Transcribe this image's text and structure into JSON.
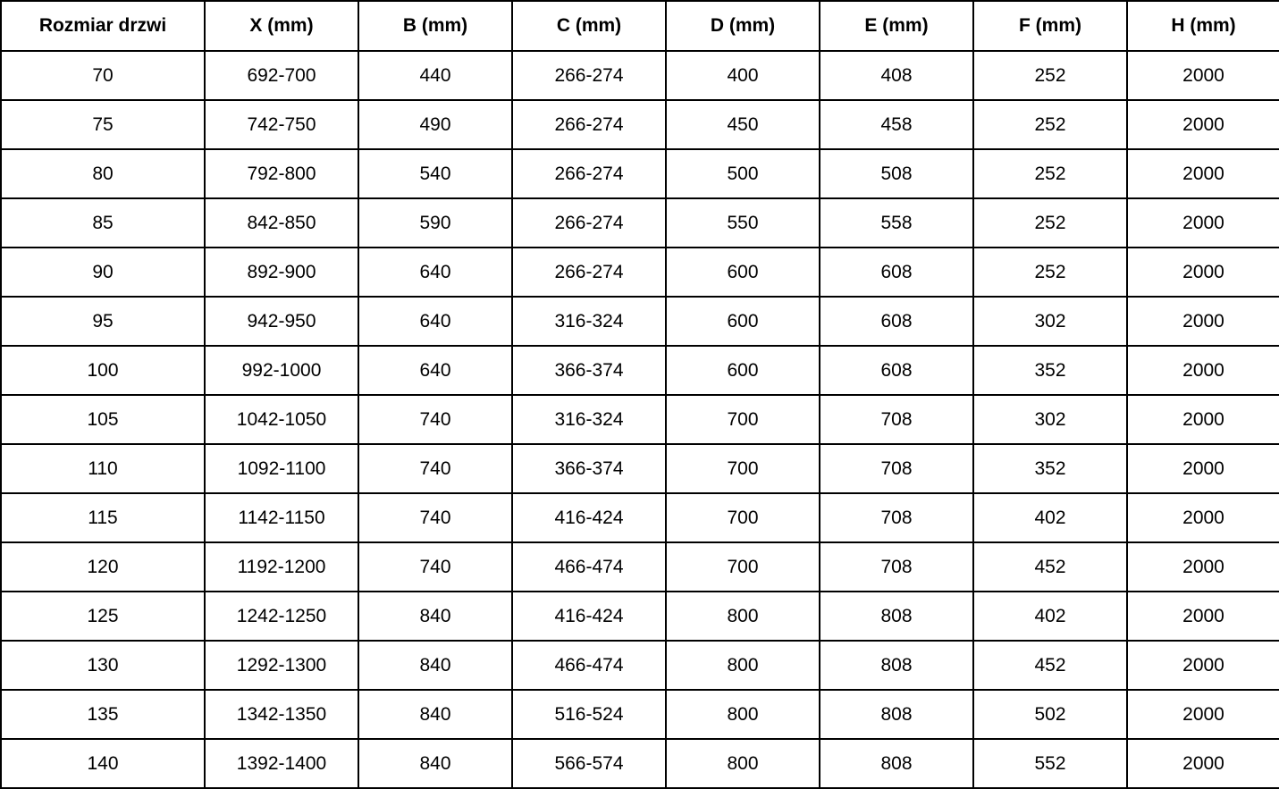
{
  "title": "Door size dimension table",
  "colors": {
    "border": "#000000",
    "text": "#000000",
    "background": "#ffffff"
  },
  "chart_data": {
    "type": "table",
    "title": "",
    "columns": [
      "Rozmiar drzwi",
      "X (mm)",
      "B (mm)",
      "C (mm)",
      "D (mm)",
      "E (mm)",
      "F (mm)",
      "H (mm)"
    ],
    "rows": [
      [
        "70",
        "692-700",
        "440",
        "266-274",
        "400",
        "408",
        "252",
        "2000"
      ],
      [
        "75",
        "742-750",
        "490",
        "266-274",
        "450",
        "458",
        "252",
        "2000"
      ],
      [
        "80",
        "792-800",
        "540",
        "266-274",
        "500",
        "508",
        "252",
        "2000"
      ],
      [
        "85",
        "842-850",
        "590",
        "266-274",
        "550",
        "558",
        "252",
        "2000"
      ],
      [
        "90",
        "892-900",
        "640",
        "266-274",
        "600",
        "608",
        "252",
        "2000"
      ],
      [
        "95",
        "942-950",
        "640",
        "316-324",
        "600",
        "608",
        "302",
        "2000"
      ],
      [
        "100",
        "992-1000",
        "640",
        "366-374",
        "600",
        "608",
        "352",
        "2000"
      ],
      [
        "105",
        "1042-1050",
        "740",
        "316-324",
        "700",
        "708",
        "302",
        "2000"
      ],
      [
        "110",
        "1092-1100",
        "740",
        "366-374",
        "700",
        "708",
        "352",
        "2000"
      ],
      [
        "115",
        "1142-1150",
        "740",
        "416-424",
        "700",
        "708",
        "402",
        "2000"
      ],
      [
        "120",
        "1192-1200",
        "740",
        "466-474",
        "700",
        "708",
        "452",
        "2000"
      ],
      [
        "125",
        "1242-1250",
        "840",
        "416-424",
        "800",
        "808",
        "402",
        "2000"
      ],
      [
        "130",
        "1292-1300",
        "840",
        "466-474",
        "800",
        "808",
        "452",
        "2000"
      ],
      [
        "135",
        "1342-1350",
        "840",
        "516-524",
        "800",
        "808",
        "502",
        "2000"
      ],
      [
        "140",
        "1392-1400",
        "840",
        "566-574",
        "800",
        "808",
        "552",
        "2000"
      ]
    ]
  }
}
